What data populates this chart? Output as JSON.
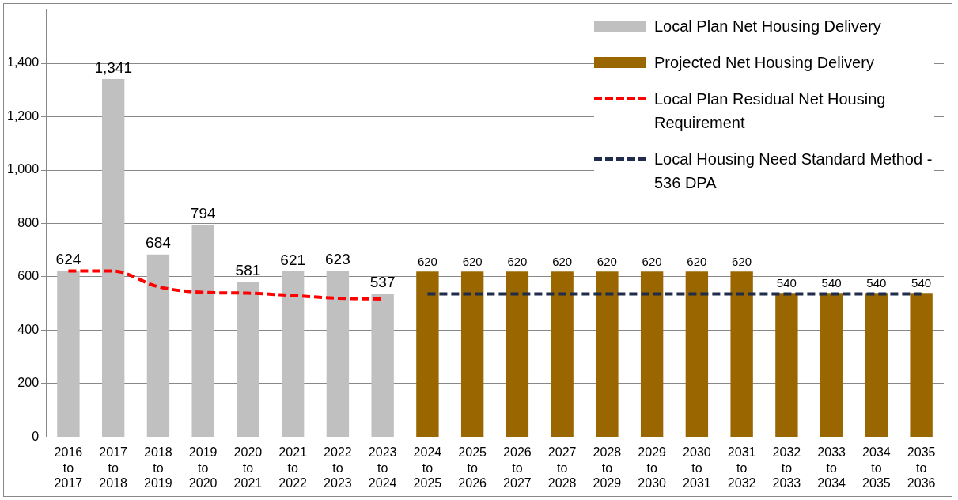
{
  "chart_data": {
    "type": "bar",
    "categories": [
      "2016 to 2017",
      "2017 to 2018",
      "2018 to 2019",
      "2019 to 2020",
      "2020 to 2021",
      "2021 to 2022",
      "2022 to 2023",
      "2023 to 2024",
      "2024 to 2025",
      "2025 to 2026",
      "2026 to 2027",
      "2027 to 2028",
      "2028 to 2029",
      "2029 to 2030",
      "2030 to 2031",
      "2031 to 2032",
      "2032 to 2033",
      "2033 to 2034",
      "2034 to 2035",
      "2035 to 2036"
    ],
    "series": [
      {
        "name": "Local Plan Net Housing Delivery",
        "color": "#c0c0c0",
        "values": [
          624,
          1341,
          684,
          794,
          581,
          621,
          623,
          537,
          null,
          null,
          null,
          null,
          null,
          null,
          null,
          null,
          null,
          null,
          null,
          null
        ],
        "value_labels": [
          "624",
          "1,341",
          "684",
          "794",
          "581",
          "621",
          "623",
          "537",
          null,
          null,
          null,
          null,
          null,
          null,
          null,
          null,
          null,
          null,
          null,
          null
        ]
      },
      {
        "name": "Projected Net Housing Delivery",
        "color": "#996600",
        "values": [
          null,
          null,
          null,
          null,
          null,
          null,
          null,
          null,
          620,
          620,
          620,
          620,
          620,
          620,
          620,
          620,
          540,
          540,
          540,
          540
        ],
        "value_labels": [
          null,
          null,
          null,
          null,
          null,
          null,
          null,
          null,
          "620",
          "620",
          "620",
          "620",
          "620",
          "620",
          "620",
          "620",
          "540",
          "540",
          "540",
          "540"
        ]
      },
      {
        "name": "Local Plan Residual Net Housing Requirement",
        "type": "line",
        "color": "#ff0000",
        "line_style": "dashed",
        "values": [
          622,
          622,
          563,
          542,
          539,
          530,
          520,
          517,
          null,
          null,
          null,
          null,
          null,
          null,
          null,
          null,
          null,
          null,
          null,
          null
        ]
      },
      {
        "name": "Local Housing Need Standard Method - 536 DPA",
        "type": "line",
        "color": "#1f2d4a",
        "line_style": "dashed",
        "values": [
          null,
          null,
          null,
          null,
          null,
          null,
          null,
          null,
          536,
          536,
          536,
          536,
          536,
          536,
          536,
          536,
          536,
          536,
          536,
          536
        ]
      }
    ],
    "ylim": [
      0,
      1600
    ],
    "yticks": [
      {
        "value": 0,
        "label": "0"
      },
      {
        "value": 200,
        "label": "200"
      },
      {
        "value": 400,
        "label": "400"
      },
      {
        "value": 600,
        "label": "600"
      },
      {
        "value": 800,
        "label": "800"
      },
      {
        "value": 1000,
        "label": "1,000"
      },
      {
        "value": 1200,
        "label": "1,200"
      },
      {
        "value": 1400,
        "label": "1,400"
      }
    ],
    "grid": "y",
    "legend": "top right",
    "marker": "none"
  }
}
